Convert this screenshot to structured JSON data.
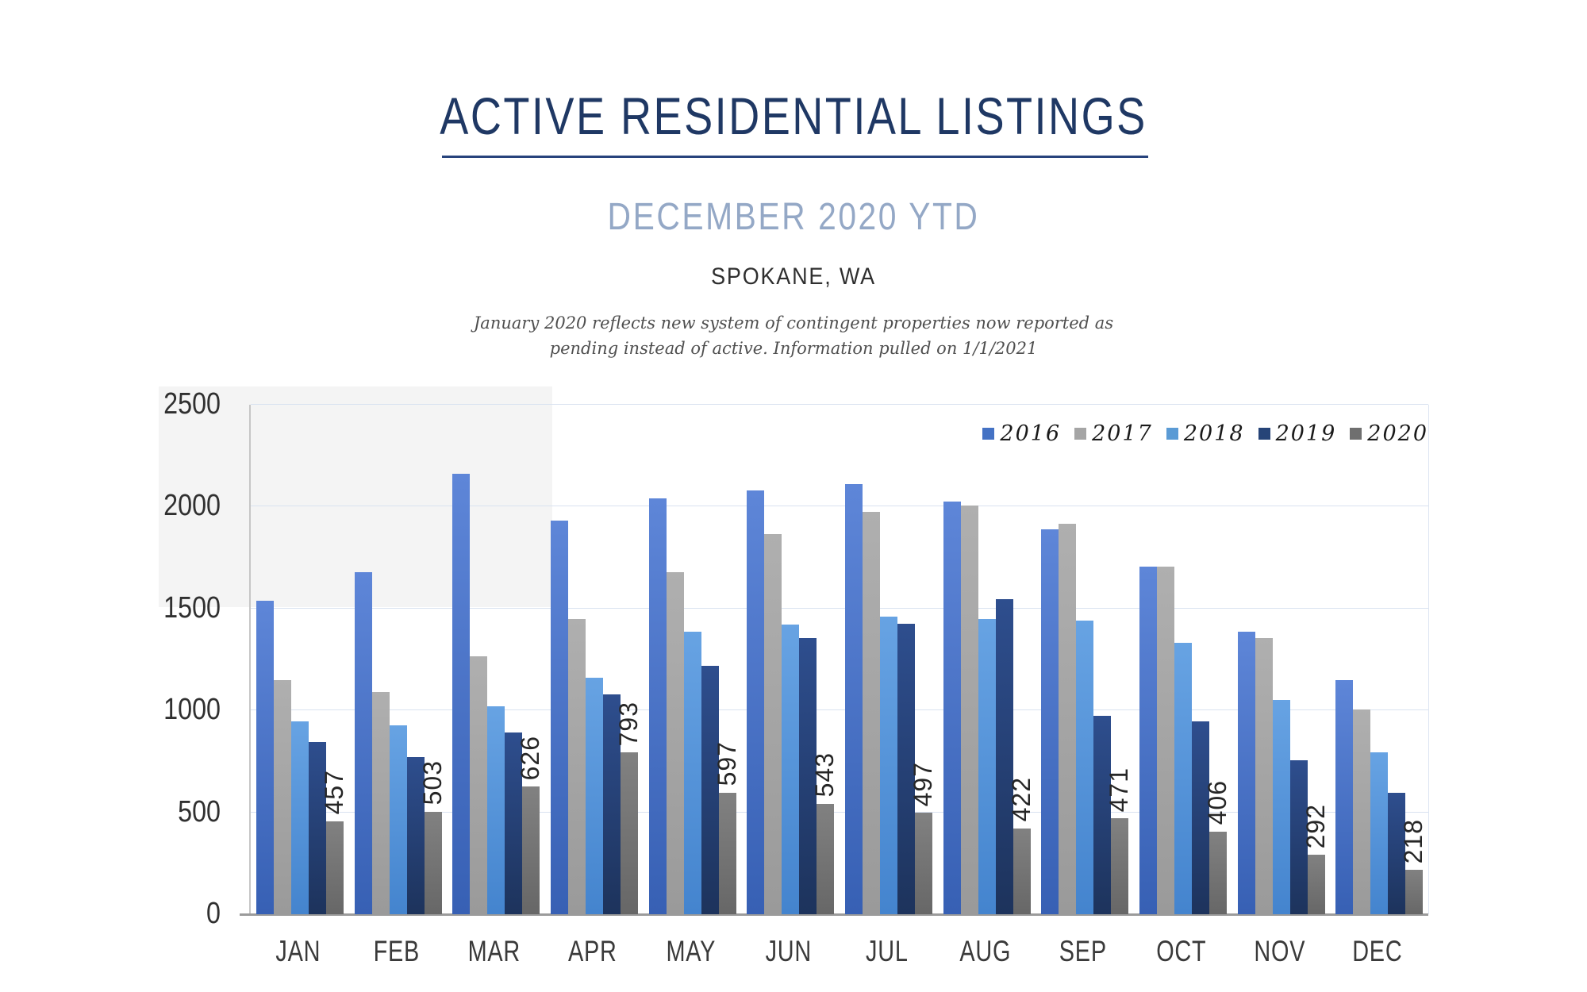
{
  "header": {
    "title": "ACTIVE RESIDENTIAL LISTINGS",
    "subtitle": "DECEMBER 2020 YTD",
    "location": "SPOKANE, WA",
    "note_line1": "January 2020 reflects new system of contingent properties now reported as",
    "note_line2": "pending instead of active.  Information pulled on 1/1/2021"
  },
  "chart_data": {
    "type": "bar",
    "title": "ACTIVE RESIDENTIAL LISTINGS",
    "subtitle": "DECEMBER 2020 YTD",
    "location": "SPOKANE, WA",
    "categories": [
      "JAN",
      "FEB",
      "MAR",
      "APR",
      "MAY",
      "JUN",
      "JUL",
      "AUG",
      "SEP",
      "OCT",
      "NOV",
      "DEC"
    ],
    "series": [
      {
        "name": "2016",
        "legend_color": "#4472C4",
        "gradient_top": "#5E86D8",
        "gradient_bottom": "#3760B4",
        "show_data_labels": false,
        "values": [
          1540,
          1680,
          2160,
          1930,
          2040,
          2080,
          2110,
          2025,
          1890,
          1705,
          1385,
          1150
        ]
      },
      {
        "name": "2017",
        "legend_color": "#A5A5A5",
        "gradient_top": "#AFAFAF",
        "gradient_bottom": "#9A9A9A",
        "show_data_labels": false,
        "values": [
          1150,
          1090,
          1265,
          1450,
          1680,
          1865,
          1975,
          2005,
          1915,
          1705,
          1355,
          1005
        ]
      },
      {
        "name": "2018",
        "legend_color": "#5B9BD5",
        "gradient_top": "#67A3E3",
        "gradient_bottom": "#4484CE",
        "show_data_labels": false,
        "values": [
          945,
          925,
          1020,
          1160,
          1385,
          1420,
          1460,
          1450,
          1440,
          1330,
          1050,
          795
        ]
      },
      {
        "name": "2019",
        "legend_color": "#264478",
        "gradient_top": "#2E4E8E",
        "gradient_bottom": "#1D335C",
        "show_data_labels": false,
        "values": [
          845,
          770,
          890,
          1080,
          1220,
          1355,
          1425,
          1545,
          975,
          945,
          755,
          595
        ]
      },
      {
        "name": "2020",
        "legend_color": "#6F6F6F",
        "gradient_top": "#818181",
        "gradient_bottom": "#676767",
        "show_data_labels": true,
        "values": [
          457,
          503,
          626,
          793,
          597,
          543,
          497,
          422,
          471,
          406,
          292,
          218
        ]
      }
    ],
    "ylim": [
      0,
      2500
    ],
    "yticks": [
      0,
      500,
      1000,
      1500,
      2000,
      2500
    ],
    "xlabel": "",
    "ylabel": "",
    "grid": true,
    "legend_position": "top-right",
    "data_label_rotation": "rotate-up-90",
    "colors": {
      "gridline": "#D9E2F0",
      "y_axis_line": "#C6C6C6",
      "baseline": "#9B9B9B",
      "tick_label": "#303030",
      "data_label": "#262626"
    }
  }
}
